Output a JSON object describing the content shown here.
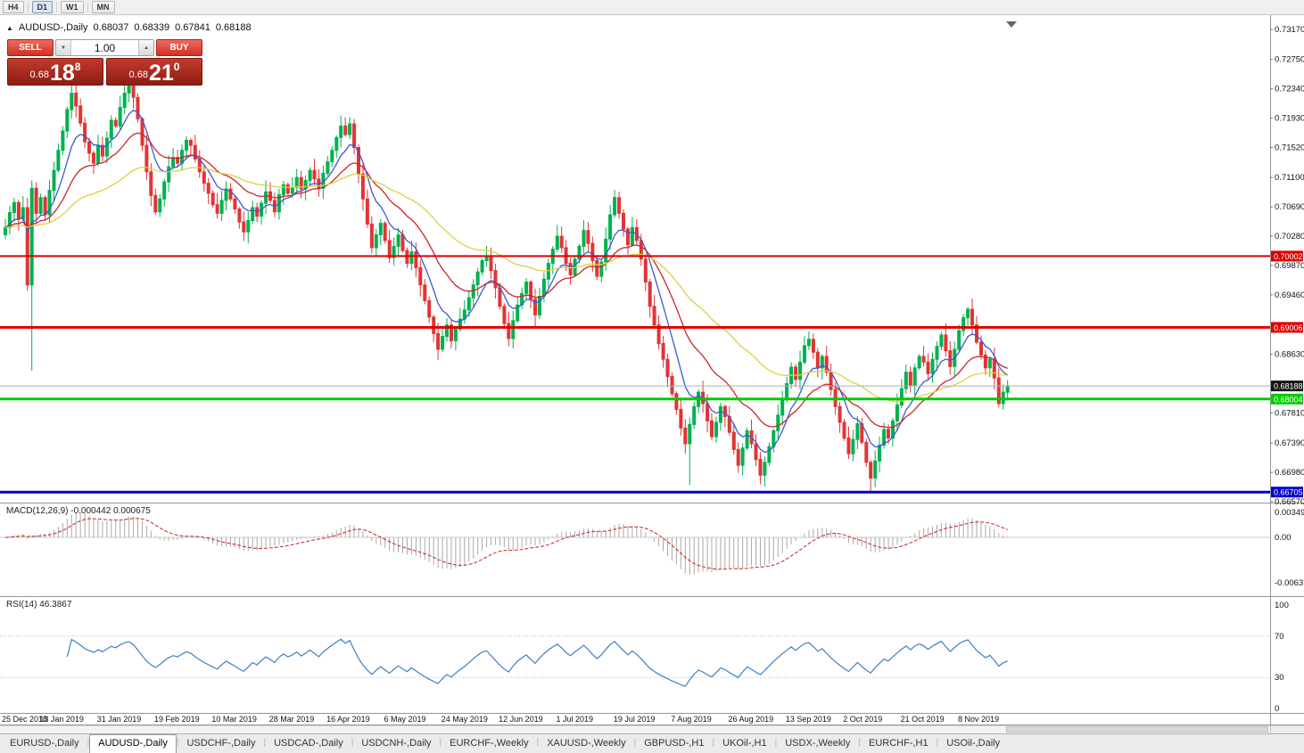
{
  "toolbar": {
    "timeframes": [
      {
        "label": "H4",
        "active": false
      },
      {
        "label": "D1",
        "active": true
      },
      {
        "label": "W1",
        "active": false
      },
      {
        "label": "MN",
        "active": false
      }
    ]
  },
  "icons": {
    "one_click_toggle": "▲",
    "volume_down": "▼",
    "volume_up": "▲"
  },
  "chart_header": {
    "symbol": "AUDUSD-,Daily",
    "open": "0.68037",
    "high": "0.68339",
    "low": "0.67841",
    "close": "0.68188"
  },
  "trade_panel": {
    "sell_label": "SELL",
    "buy_label": "BUY",
    "volume": "1.00",
    "sell_price": {
      "base": "0.68",
      "pips": "18",
      "pip_fraction": "8"
    },
    "buy_price": {
      "base": "0.68",
      "pips": "21",
      "pip_fraction": "0"
    }
  },
  "indicators": {
    "macd": {
      "label": "MACD(12,26,9)",
      "value_main": "-0.000442",
      "value_signal": "0.000675"
    },
    "rsi": {
      "label": "RSI(14)",
      "value": "46.3867"
    }
  },
  "tabs": [
    {
      "label": "EURUSD-,Daily",
      "active": false
    },
    {
      "label": "AUDUSD-,Daily",
      "active": true
    },
    {
      "label": "USDCHF-,Daily",
      "active": false
    },
    {
      "label": "USDCAD-,Daily",
      "active": false
    },
    {
      "label": "USDCNH-,Daily",
      "active": false
    },
    {
      "label": "EURCHF-,Weekly",
      "active": false
    },
    {
      "label": "XAUUSD-,Weekly",
      "active": false
    },
    {
      "label": "GBPUSD-,H1",
      "active": false
    },
    {
      "label": "UKOil-,H1",
      "active": false
    },
    {
      "label": "USDX-,Weekly",
      "active": false
    },
    {
      "label": "EURCHF-,H1",
      "active": false
    },
    {
      "label": "USOil-,Daily",
      "active": false
    }
  ],
  "chart_data": {
    "type": "candlestick",
    "symbol": "AUDUSD",
    "timeframe": "Daily",
    "title": "AUDUSD-,Daily",
    "x_labels": [
      "25 Dec 2018",
      "13 Jan 2019",
      "31 Jan 2019",
      "19 Feb 2019",
      "10 Mar 2019",
      "28 Mar 2019",
      "16 Apr 2019",
      "6 May 2019",
      "24 May 2019",
      "12 Jun 2019",
      "1 Jul 2019",
      "19 Jul 2019",
      "7 Aug 2019",
      "26 Aug 2019",
      "13 Sep 2019",
      "2 Oct 2019",
      "21 Oct 2019",
      "8 Nov 2019"
    ],
    "label_every": 13,
    "price_axis": {
      "max": 0.7317,
      "min": 0.6657,
      "tick_labels": [
        "0.73170",
        "0.72750",
        "0.72340",
        "0.71930",
        "0.71520",
        "0.71100",
        "0.70690",
        "0.70280",
        "0.69870",
        "0.69460",
        "0.68630",
        "0.67810",
        "0.67390",
        "0.66980",
        "0.66570"
      ]
    },
    "candles": {
      "first_open": 0.703,
      "closes": [
        0.704,
        0.7061,
        0.7075,
        0.7052,
        0.7068,
        0.696,
        0.7095,
        0.706,
        0.7082,
        0.7058,
        0.7092,
        0.712,
        0.7148,
        0.7175,
        0.7205,
        0.7228,
        0.721,
        0.7186,
        0.716,
        0.7144,
        0.713,
        0.7155,
        0.714,
        0.7165,
        0.719,
        0.7182,
        0.7208,
        0.7228,
        0.7238,
        0.7222,
        0.7192,
        0.7155,
        0.7118,
        0.7085,
        0.7062,
        0.708,
        0.7104,
        0.7125,
        0.7138,
        0.713,
        0.7148,
        0.7162,
        0.7155,
        0.7136,
        0.7118,
        0.7102,
        0.7088,
        0.7072,
        0.706,
        0.7078,
        0.7094,
        0.708,
        0.7066,
        0.7048,
        0.7034,
        0.705,
        0.7068,
        0.7056,
        0.7074,
        0.709,
        0.7078,
        0.7062,
        0.7086,
        0.71,
        0.7088,
        0.7096,
        0.711,
        0.7094,
        0.7106,
        0.712,
        0.7108,
        0.7095,
        0.7116,
        0.7132,
        0.7148,
        0.7166,
        0.7182,
        0.717,
        0.7185,
        0.7152,
        0.7115,
        0.708,
        0.7045,
        0.7012,
        0.703,
        0.7046,
        0.7022,
        0.6998,
        0.7014,
        0.703,
        0.7008,
        0.699,
        0.7006,
        0.6984,
        0.696,
        0.6938,
        0.6915,
        0.6892,
        0.687,
        0.6888,
        0.6904,
        0.6882,
        0.6898,
        0.6912,
        0.6925,
        0.6942,
        0.696,
        0.6978,
        0.6994,
        0.7,
        0.698,
        0.6956,
        0.693,
        0.6906,
        0.6885,
        0.691,
        0.6932,
        0.6948,
        0.6964,
        0.694,
        0.6918,
        0.6944,
        0.6968,
        0.699,
        0.701,
        0.7028,
        0.7012,
        0.699,
        0.6974,
        0.6996,
        0.7014,
        0.7036,
        0.7018,
        0.6994,
        0.6972,
        0.6992,
        0.7024,
        0.7058,
        0.7082,
        0.706,
        0.7038,
        0.7016,
        0.704,
        0.7022,
        0.6996,
        0.6964,
        0.693,
        0.6904,
        0.6878,
        0.6856,
        0.6832,
        0.6808,
        0.6786,
        0.676,
        0.6738,
        0.6765,
        0.679,
        0.681,
        0.6794,
        0.677,
        0.6748,
        0.6768,
        0.679,
        0.6776,
        0.6754,
        0.673,
        0.6708,
        0.6732,
        0.6756,
        0.6738,
        0.6716,
        0.6694,
        0.6712,
        0.6734,
        0.6756,
        0.6778,
        0.68,
        0.6822,
        0.6845,
        0.6828,
        0.6852,
        0.6875,
        0.6884,
        0.6866,
        0.6844,
        0.686,
        0.6838,
        0.6814,
        0.679,
        0.6768,
        0.6746,
        0.6724,
        0.6744,
        0.6766,
        0.674,
        0.6712,
        0.669,
        0.6714,
        0.6736,
        0.6758,
        0.6746,
        0.677,
        0.6792,
        0.6815,
        0.6838,
        0.682,
        0.6844,
        0.686,
        0.6852,
        0.6836,
        0.6856,
        0.6874,
        0.689,
        0.6868,
        0.6846,
        0.687,
        0.6896,
        0.6914,
        0.6926,
        0.6904,
        0.688,
        0.6862,
        0.6844,
        0.6856,
        0.683,
        0.6794,
        0.681,
        0.68188
      ],
      "spike_lows": {
        "6": 0.684,
        "155": 0.668,
        "172": 0.6682,
        "196": 0.667
      }
    },
    "moving_averages": [
      {
        "period": 8,
        "color": "#3c5ad1"
      },
      {
        "period": 20,
        "color": "#c9262b"
      },
      {
        "period": 50,
        "color": "#ddd13e"
      }
    ],
    "hlines": [
      {
        "value": 0.70002,
        "label": "0.70002",
        "color": "#dd0000",
        "width": 2
      },
      {
        "value": 0.69006,
        "label": "0.69006",
        "color": "#dd0000",
        "width": 3
      },
      {
        "value": 0.68004,
        "label": "0.68004",
        "color": "#00cc00",
        "width": 3
      },
      {
        "value": 0.66705,
        "label": "0.66705",
        "color": "#0000cc",
        "width": 3
      }
    ],
    "current_price": {
      "value": 0.68188,
      "label": "0.68188",
      "badge_color": "#151515"
    },
    "macd": {
      "params": [
        12,
        26,
        9
      ],
      "axis_ticks": [
        {
          "label": "0.00349",
          "value": 0.00349
        },
        {
          "label": "0.00",
          "value": 0
        },
        {
          "label": "-0.00637",
          "value": -0.00637
        }
      ],
      "hist_color": "#a9a9a9",
      "signal_color": "#cc2020"
    },
    "rsi": {
      "period": 14,
      "axis_ticks": [
        {
          "label": "100",
          "value": 100
        },
        {
          "label": "70",
          "value": 70
        },
        {
          "label": "30",
          "value": 30
        },
        {
          "label": "0",
          "value": 0
        }
      ],
      "guide_levels": [
        70,
        30
      ],
      "line_color": "#3e7fc1"
    },
    "colors": {
      "up": "#00b14f",
      "down": "#e23434",
      "separator": "#979797",
      "current_line": "#b0b0b0"
    }
  }
}
